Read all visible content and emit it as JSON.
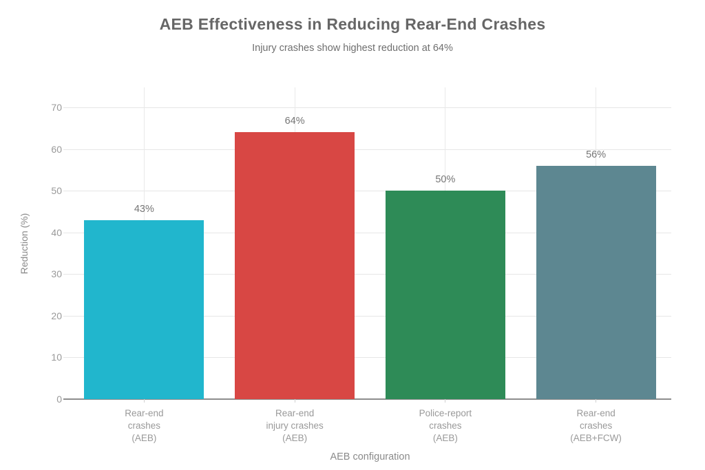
{
  "chart_data": {
    "type": "bar",
    "title": "AEB Effectiveness in Reducing Rear-End Crashes",
    "subtitle": "Injury crashes show highest reduction at 64%",
    "xlabel": "AEB configuration",
    "ylabel": "Reduction (%)",
    "ylim": [
      0,
      70
    ],
    "yticks": [
      0,
      10,
      20,
      30,
      40,
      50,
      60,
      70
    ],
    "grid": true,
    "legend": "none",
    "categories": [
      "Rear-end crashes (AEB)",
      "Rear-end injury crashes (AEB)",
      "Police-report crashes (AEB)",
      "Rear-end crashes (AEB+FCW)"
    ],
    "category_lines": [
      [
        "Rear-end",
        "crashes",
        "(AEB)"
      ],
      [
        "Rear-end",
        "injury crashes",
        "(AEB)"
      ],
      [
        "Police-report",
        "crashes",
        "(AEB)"
      ],
      [
        "Rear-end",
        "crashes",
        "(AEB+FCW)"
      ]
    ],
    "values": [
      43,
      64,
      50,
      56
    ],
    "value_labels": [
      "43%",
      "64%",
      "50%",
      "56%"
    ],
    "bar_colors": [
      "#21b6cd",
      "#d84744",
      "#2e8b57",
      "#5d8791"
    ],
    "colors": {
      "background": "#ffffff",
      "title_text": "#666666",
      "subtitle_text": "#6e6e6e",
      "tick_text": "#999999",
      "value_text": "#757575",
      "axis_title_text": "#8a8a8a",
      "gridline": "#e6e6e6",
      "axis_line": "#8c8c8c"
    }
  }
}
